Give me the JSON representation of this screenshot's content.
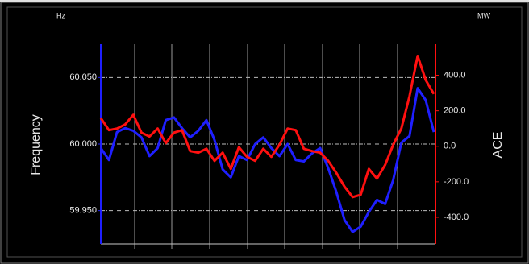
{
  "chart_data": {
    "type": "line",
    "left_unit": "Hz",
    "right_unit": "MW",
    "ylabel": "Frequency",
    "y2label": "ACE",
    "ylim": [
      59.925,
      60.075
    ],
    "yticks": [
      {
        "value": 59.95,
        "label": "59.950"
      },
      {
        "value": 60,
        "label": "60.000"
      },
      {
        "value": 60.05,
        "label": "60.050"
      }
    ],
    "y2lim": [
      -550,
      575
    ],
    "y2ticks": [
      {
        "value": -400,
        "label": "-400.0"
      },
      {
        "value": -200,
        "label": "-200.0"
      },
      {
        "value": 0,
        "label": "0.0"
      },
      {
        "value": 200,
        "label": "200.0"
      },
      {
        "value": 400,
        "label": "400.0"
      }
    ],
    "grid": true,
    "series": [
      {
        "name": "Frequency",
        "color": "#1f1fff",
        "axis": "y",
        "values": [
          59.997,
          59.988,
          60.009,
          60.012,
          60.01,
          60.005,
          59.991,
          59.997,
          60.018,
          60.02,
          60.012,
          60.005,
          60.01,
          60.018,
          60.003,
          59.981,
          59.975,
          59.991,
          59.988,
          60.0,
          60.005,
          59.997,
          59.991,
          60.0,
          59.988,
          59.987,
          59.993,
          59.997,
          59.982,
          59.964,
          59.943,
          59.934,
          59.938,
          59.949,
          59.958,
          59.955,
          59.973,
          60.001,
          60.006,
          60.042,
          60.033,
          60.009
        ]
      },
      {
        "name": "ACE",
        "color": "#ff1010",
        "axis": "y2",
        "values": [
          159,
          91,
          100,
          123,
          177,
          77,
          55,
          100,
          18,
          77,
          91,
          -27,
          -36,
          -14,
          -82,
          -36,
          -127,
          -5,
          -59,
          -82,
          -14,
          -59,
          9,
          100,
          91,
          -14,
          -27,
          -36,
          -82,
          -150,
          -227,
          -286,
          -273,
          -127,
          -182,
          -105,
          9,
          100,
          282,
          509,
          373,
          295
        ]
      }
    ]
  }
}
